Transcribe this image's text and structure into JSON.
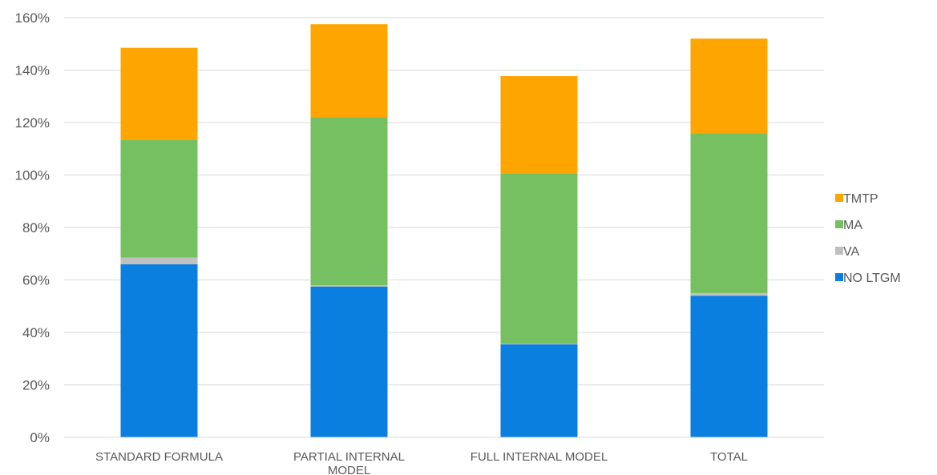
{
  "chart_data": {
    "type": "bar",
    "stacked": true,
    "title": "",
    "xlabel": "",
    "ylabel": "",
    "categories": [
      "STANDARD FORMULA",
      "PARTIAL INTERNAL MODEL",
      "FULL INTERNAL MODEL",
      "TOTAL"
    ],
    "category_lines": [
      [
        "STANDARD FORMULA"
      ],
      [
        "PARTIAL INTERNAL",
        "MODEL"
      ],
      [
        "FULL INTERNAL MODEL"
      ],
      [
        "TOTAL"
      ]
    ],
    "ylim": [
      0,
      160
    ],
    "yticks": [
      0,
      20,
      40,
      60,
      80,
      100,
      120,
      140,
      160
    ],
    "ytick_labels": [
      "0%",
      "20%",
      "40%",
      "60%",
      "80%",
      "100%",
      "120%",
      "140%",
      "160%"
    ],
    "grid": true,
    "legend_position": "right",
    "series": [
      {
        "name": "NO LTGM",
        "color": "#0a7fe0",
        "values": [
          66,
          57.5,
          35.5,
          54
        ]
      },
      {
        "name": "VA",
        "color": "#c0c0c0",
        "values": [
          2.5,
          0.5,
          0.2,
          1
        ]
      },
      {
        "name": "MA",
        "color": "#76c061",
        "values": [
          45,
          64,
          65,
          61
        ]
      },
      {
        "name": "TMTP",
        "color": "#ffa500",
        "values": [
          35,
          35.5,
          37,
          36
        ]
      }
    ]
  }
}
